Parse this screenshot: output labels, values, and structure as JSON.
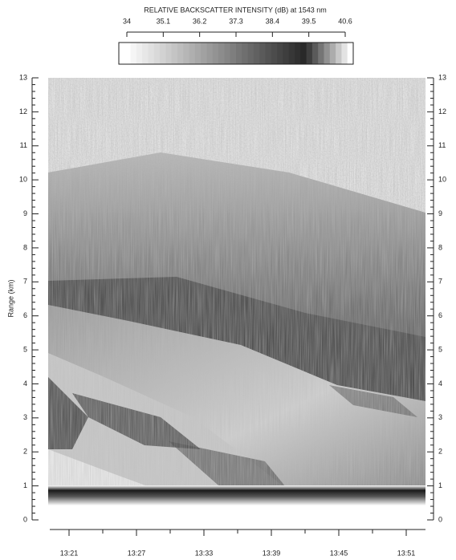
{
  "chart_data": {
    "type": "image",
    "colorbar_label": "RELATIVE BACKSCATTER INTENSITY (dB) at 1543 nm",
    "clim": [
      34,
      40.6
    ],
    "cticks": [
      34,
      35.1,
      36.2,
      37.3,
      38.4,
      39.5,
      40.6
    ],
    "ylabel": "Range (km)",
    "ylim": [
      0,
      13
    ],
    "yticks": [
      0,
      1,
      2,
      3,
      4,
      5,
      6,
      7,
      8,
      9,
      10,
      11,
      12,
      13
    ],
    "xticks": [
      "13:21",
      "13:27",
      "13:33",
      "13:39",
      "13:45",
      "13:51"
    ]
  }
}
